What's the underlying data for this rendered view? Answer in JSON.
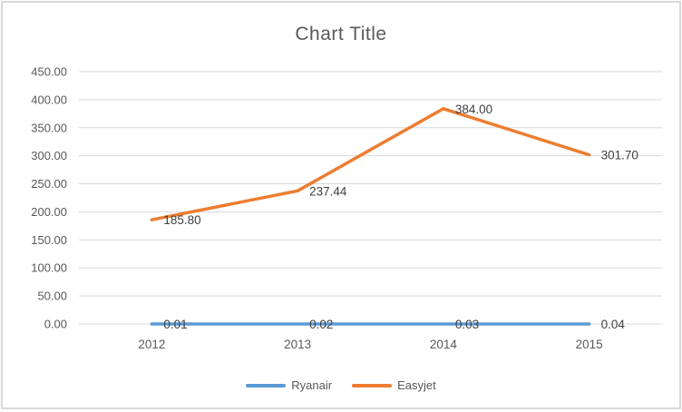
{
  "window": {
    "background": "#FFFFFF",
    "border_color": "#D9D9D9"
  },
  "chart_data": {
    "type": "line",
    "title": "Chart Title",
    "title_color": "#595959",
    "categories": [
      "2012",
      "2013",
      "2014",
      "2015"
    ],
    "series": [
      {
        "name": "Ryanair",
        "color": "#5B9BD5",
        "values": [
          0.01,
          0.02,
          0.03,
          0.04
        ],
        "data_labels": [
          "0.01",
          "0.02",
          "0.03",
          "0.04"
        ]
      },
      {
        "name": "Easyjet",
        "color": "#ED7D31",
        "values": [
          185.8,
          237.44,
          384.0,
          301.7
        ],
        "data_labels": [
          "185.80",
          "237.44",
          "384.00",
          "301.70"
        ]
      }
    ],
    "ylim": [
      0,
      450
    ],
    "y_ticks": [
      {
        "value": 0,
        "label": "0.00"
      },
      {
        "value": 50,
        "label": "50.00"
      },
      {
        "value": 100,
        "label": "100.00"
      },
      {
        "value": 150,
        "label": "150.00"
      },
      {
        "value": 200,
        "label": "200.00"
      },
      {
        "value": 250,
        "label": "250.00"
      },
      {
        "value": 300,
        "label": "300.00"
      },
      {
        "value": 350,
        "label": "350.00"
      },
      {
        "value": 400,
        "label": "400.00"
      },
      {
        "value": 450,
        "label": "450.00"
      }
    ],
    "grid": true,
    "gridline_color": "#D9D9D9",
    "axis_label_color": "#595959",
    "data_label_color": "#404040",
    "legend_position": "bottom"
  }
}
